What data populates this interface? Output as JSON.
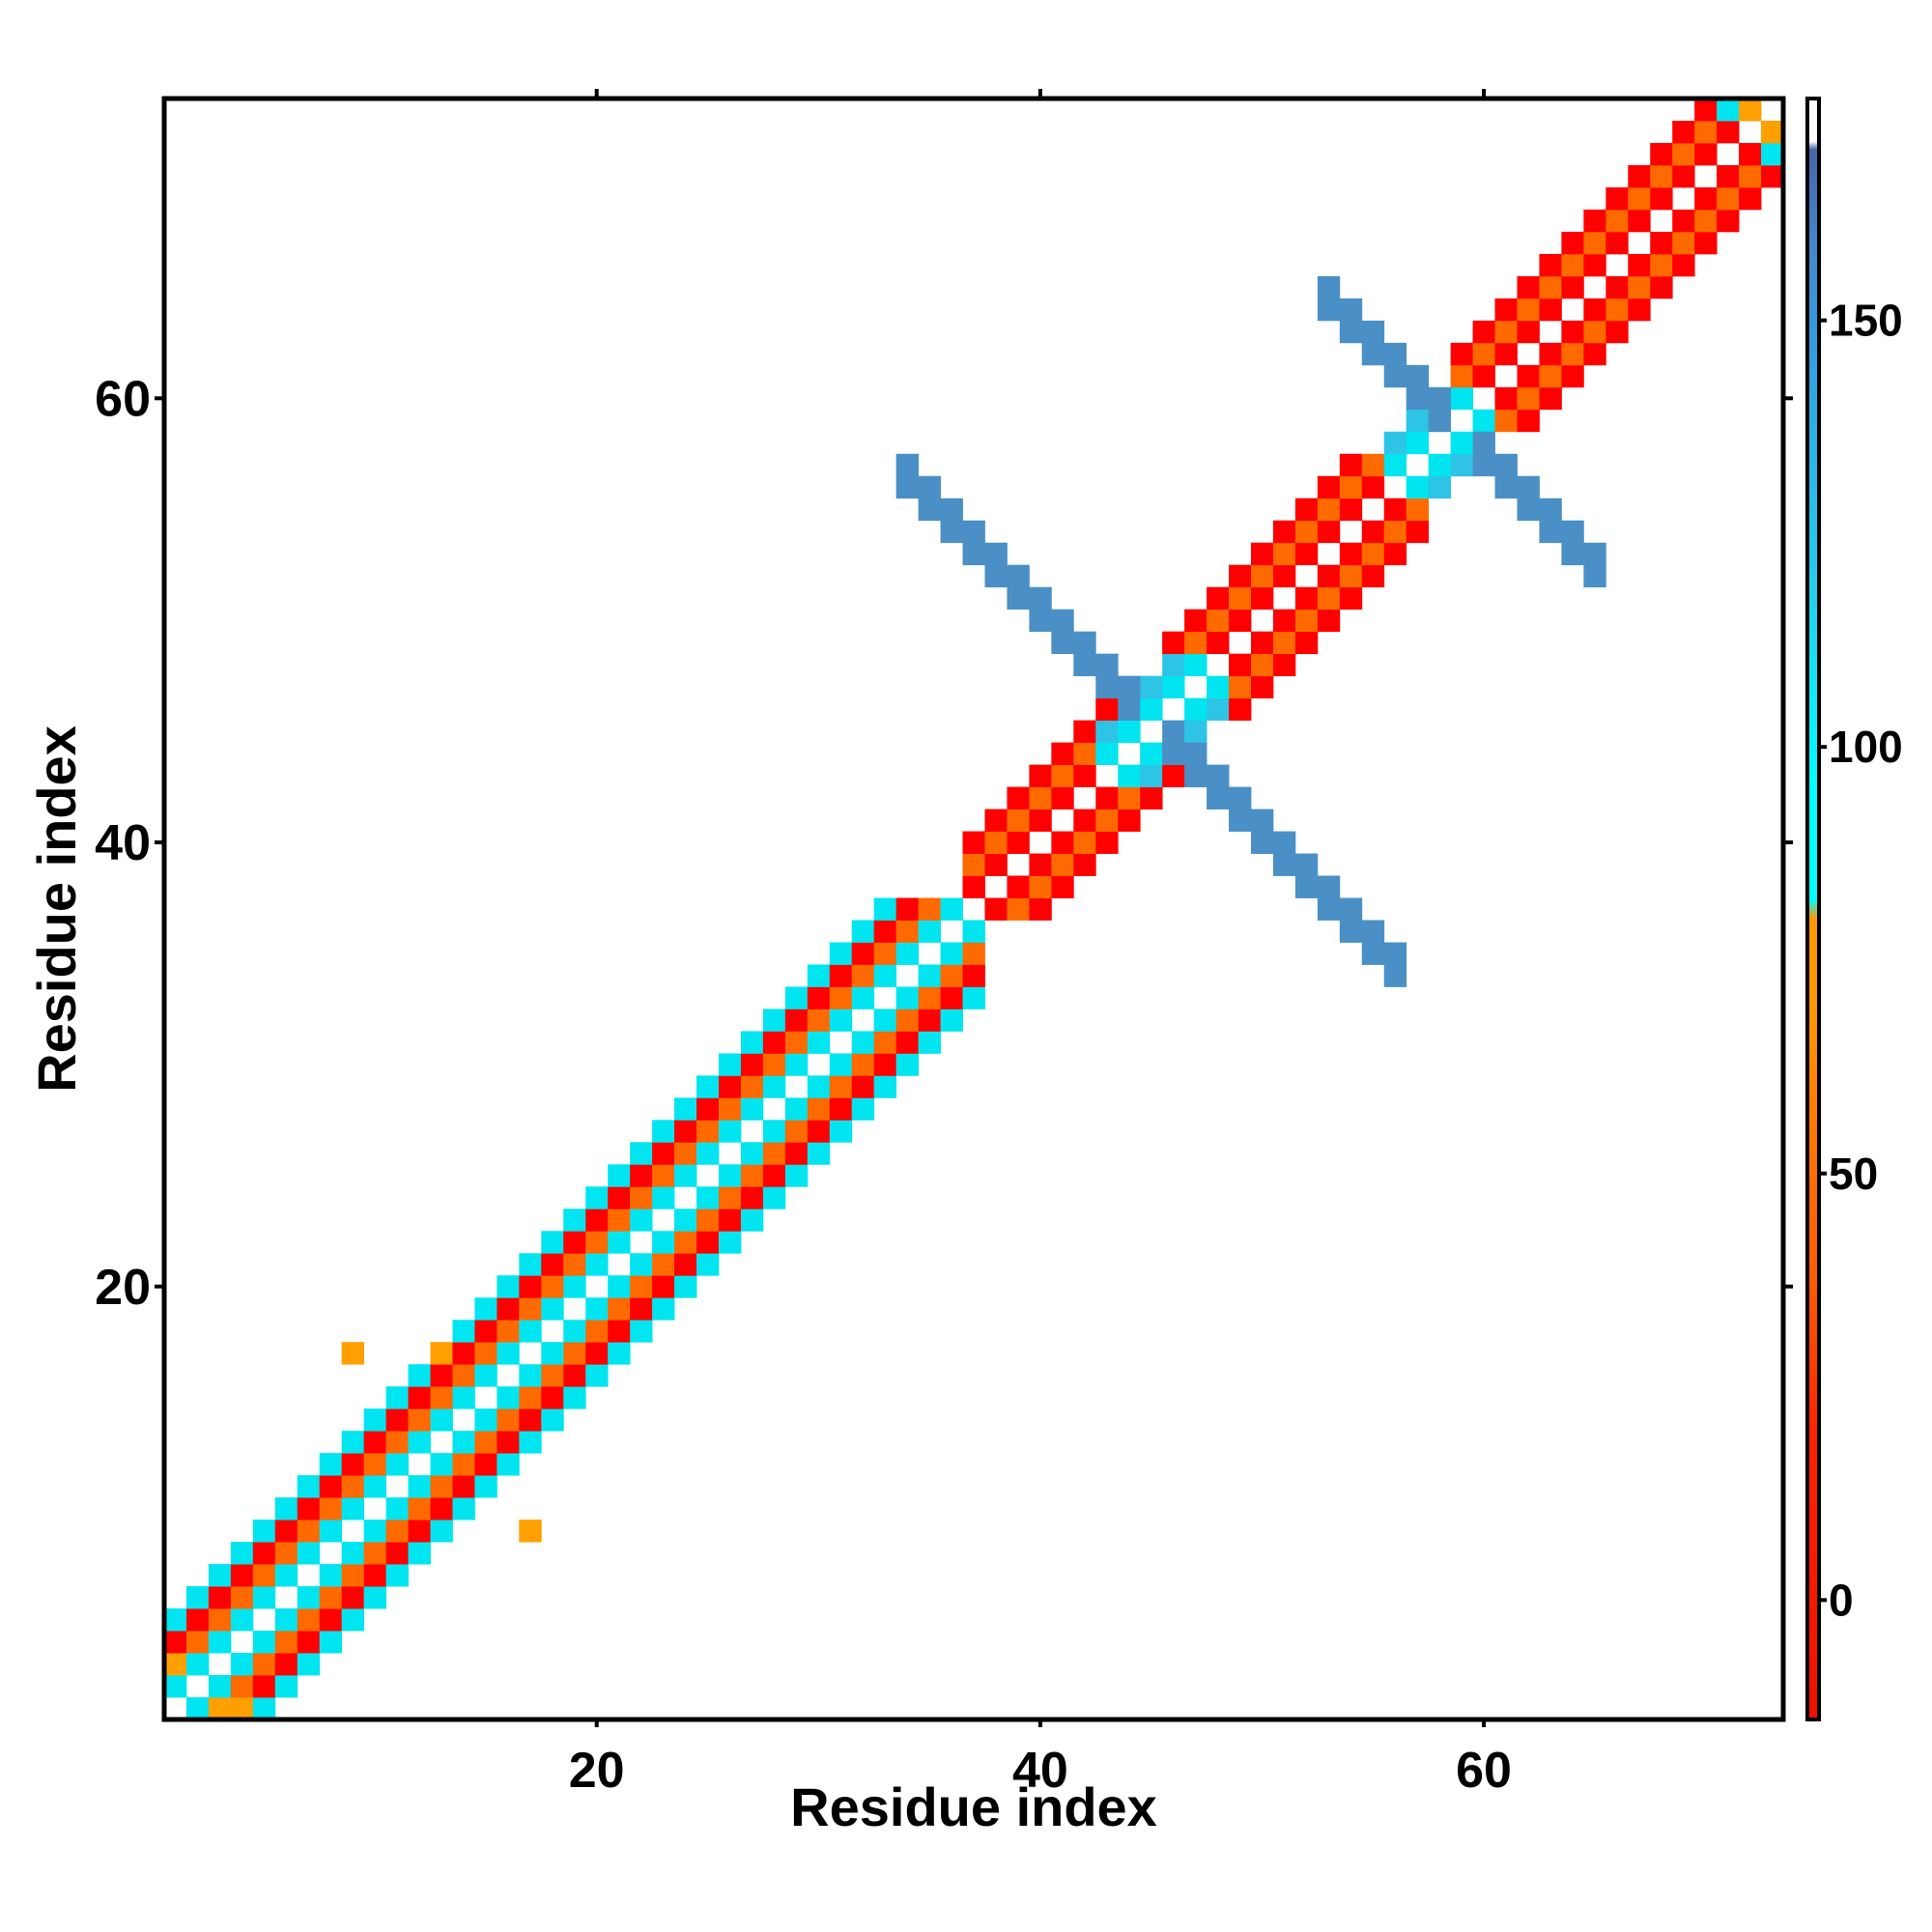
{
  "chart_data": {
    "type": "heatmap",
    "title": "",
    "xlabel": "Residue index",
    "ylabel": "Residue index",
    "xlim": [
      0.5,
      73.5
    ],
    "ylim": [
      0.5,
      73.5
    ],
    "x_ticks": [
      20,
      40,
      60
    ],
    "y_ticks": [
      20,
      40,
      60
    ],
    "x_tick_labels": [
      "20",
      "40",
      "60"
    ],
    "y_tick_labels": [
      "20",
      "40",
      "60"
    ],
    "grid": false,
    "colorbar": {
      "range": [
        -14,
        176
      ],
      "ticks": [
        0,
        50,
        100,
        150
      ],
      "tick_labels": [
        "0",
        "50",
        "100",
        "150"
      ],
      "stops": [
        {
          "value": -14,
          "color": "#ee1100"
        },
        {
          "value": 20,
          "color": "#ff2200"
        },
        {
          "value": 35,
          "color": "#ff5500"
        },
        {
          "value": 55,
          "color": "#ff7700"
        },
        {
          "value": 70,
          "color": "#ff9900"
        },
        {
          "value": 80,
          "color": "#ff9900"
        },
        {
          "value": 82,
          "color": "#00ffff"
        },
        {
          "value": 95,
          "color": "#00ffff"
        },
        {
          "value": 120,
          "color": "#22ccee"
        },
        {
          "value": 150,
          "color": "#3399dd"
        },
        {
          "value": 158,
          "color": "#4488cc"
        },
        {
          "value": 170,
          "color": "#4466aa"
        },
        {
          "value": 171,
          "color": "#ffffff"
        },
        {
          "value": 176,
          "color": "#ffffff"
        }
      ]
    },
    "palette": {
      "r": "#ff0000",
      "o": "#ff6a00",
      "a": "#ffa000",
      "c": "#00e5f0",
      "b": "#2ec4e6",
      "d": "#4a90c6"
    },
    "regions": [
      {
        "desc": "N-terminal helix band",
        "x_from": 1,
        "x_to": 37,
        "y_from": 1,
        "y_to": 37,
        "min_offset": 1,
        "max_offset": 4,
        "colors": [
          "c",
          "o",
          "r",
          "c"
        ]
      },
      {
        "desc": "C-terminal helix band 1",
        "x_from": 37,
        "x_to": 46,
        "y_from": 37,
        "y_to": 46,
        "min_offset": 1,
        "max_offset": 3,
        "colors": [
          "r",
          "o",
          "r"
        ]
      },
      {
        "desc": "C-terminal helix band 2",
        "x_from": 46,
        "x_to": 57,
        "y_from": 46,
        "y_to": 57,
        "min_offset": 1,
        "max_offset": 3,
        "colors": [
          "r",
          "o",
          "r"
        ]
      },
      {
        "desc": "C-terminal helix band 3",
        "x_from": 59,
        "x_to": 73,
        "y_from": 59,
        "y_to": 73,
        "min_offset": 1,
        "max_offset": 3,
        "colors": [
          "r",
          "o",
          "r"
        ]
      },
      {
        "desc": "turn near 45",
        "x_from": 43,
        "x_to": 48,
        "y_from": 43,
        "y_to": 48,
        "min_offset": 1,
        "max_offset": 2,
        "colors": [
          "c",
          "b"
        ]
      },
      {
        "desc": "turn near 58",
        "x_from": 56,
        "x_to": 60,
        "y_from": 56,
        "y_to": 60,
        "min_offset": 1,
        "max_offset": 2,
        "colors": [
          "c",
          "b"
        ]
      }
    ],
    "antidiagonals": [
      {
        "desc": "sheet pairing upper-left arm",
        "sum": 90,
        "x_from": 34,
        "x_to": 44,
        "width": 2,
        "color": "d"
      },
      {
        "desc": "sheet pairing lower-right arm",
        "sum": 90,
        "x_from": 46,
        "x_to": 56,
        "width": 2,
        "color": "d"
      },
      {
        "desc": "sheet pairing upper-left arm 2",
        "sum": 117,
        "x_from": 53,
        "x_to": 58,
        "width": 2,
        "color": "d"
      },
      {
        "desc": "sheet pairing lower-right arm 2",
        "sum": 117,
        "x_from": 60,
        "x_to": 65,
        "width": 2,
        "color": "d"
      }
    ],
    "cells": [
      {
        "x": 9,
        "y": 17,
        "c": "a"
      },
      {
        "x": 17,
        "y": 9,
        "c": "a"
      },
      {
        "x": 13,
        "y": 17,
        "c": "a"
      },
      {
        "x": 3,
        "y": 1,
        "c": "a"
      },
      {
        "x": 4,
        "y": 1,
        "c": "a"
      },
      {
        "x": 1,
        "y": 3,
        "c": "a"
      },
      {
        "x": 72,
        "y": 73,
        "c": "a"
      },
      {
        "x": 73,
        "y": 72,
        "c": "a"
      },
      {
        "x": 71,
        "y": 73,
        "c": "c"
      },
      {
        "x": 73,
        "y": 71,
        "c": "c"
      }
    ]
  }
}
